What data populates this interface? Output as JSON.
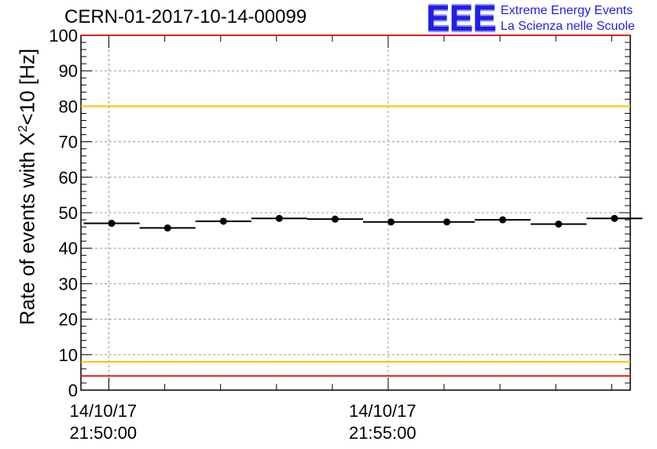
{
  "chart_data": {
    "type": "scatter",
    "title": "CERN-01-2017-10-14-00099",
    "ylabel": {
      "prefix": "Rate of events with X",
      "sup": "2",
      "suffix": "<10 [Hz]"
    },
    "ylim": [
      0,
      100
    ],
    "yticks": [
      "0",
      "10",
      "20",
      "30",
      "40",
      "50",
      "60",
      "70",
      "80",
      "90",
      "100"
    ],
    "xticks": [
      {
        "date": "14/10/17",
        "time": "21:50:00",
        "seconds": 0
      },
      {
        "date": "14/10/17",
        "time": "21:55:00",
        "seconds": 300
      }
    ],
    "xlim_seconds": [
      -30,
      560
    ],
    "bin_width_seconds": 60,
    "points": [
      {
        "x": 3,
        "y": 47.0
      },
      {
        "x": 63,
        "y": 45.7
      },
      {
        "x": 123,
        "y": 47.6
      },
      {
        "x": 183,
        "y": 48.4
      },
      {
        "x": 243,
        "y": 48.2
      },
      {
        "x": 303,
        "y": 47.4
      },
      {
        "x": 363,
        "y": 47.4
      },
      {
        "x": 423,
        "y": 48.0
      },
      {
        "x": 483,
        "y": 46.8
      },
      {
        "x": 543,
        "y": 48.4
      }
    ],
    "reference_lines": [
      {
        "y": 100,
        "color": "#e8201c"
      },
      {
        "y": 80,
        "color": "#f5c400"
      },
      {
        "y": 8,
        "color": "#f5c400"
      },
      {
        "y": 4,
        "color": "#e8201c"
      }
    ],
    "grid": true
  },
  "branding": {
    "logo": "EEE",
    "line1": "Extreme Energy Events",
    "line2": "La Scienza nelle Scuole"
  }
}
